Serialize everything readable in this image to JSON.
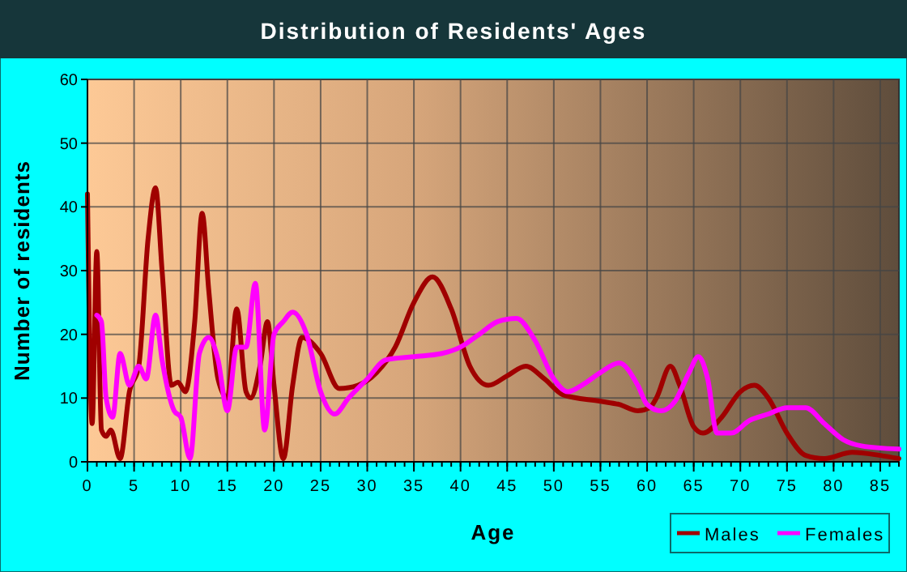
{
  "chart_data": {
    "type": "line",
    "title": "Distribution of Residents' Ages",
    "xlabel": "Age",
    "ylabel": "Number of residents",
    "xlim": [
      0,
      87
    ],
    "xticks": [
      0,
      5,
      10,
      15,
      20,
      25,
      30,
      35,
      40,
      45,
      50,
      55,
      60,
      65,
      70,
      75,
      80,
      85
    ],
    "ylim": [
      0,
      60
    ],
    "yticks": [
      0,
      10,
      20,
      30,
      40,
      50,
      60
    ],
    "grid": true,
    "legend": "bottom right",
    "marker": "none",
    "line_style": "solid",
    "series": [
      {
        "name": "Males",
        "color": "#a00000",
        "x": [
          0,
          0.5,
          1,
          1.5,
          2,
          2.5,
          3.5,
          4.5,
          5.5,
          6.5,
          7.3,
          8,
          9,
          9.7,
          10.5,
          11.5,
          12.3,
          13,
          14,
          15,
          16,
          17,
          17.5,
          18.5,
          19.3,
          20,
          21,
          22,
          23,
          25,
          27,
          29,
          31,
          33,
          35,
          37,
          39,
          41,
          43,
          45,
          47,
          49,
          51,
          55,
          57,
          59,
          60.3,
          61,
          62.5,
          63.5,
          65,
          66,
          68,
          70,
          71.5,
          73,
          75,
          77,
          79,
          82,
          85,
          87
        ],
        "values": [
          42,
          6,
          33,
          5,
          4,
          5,
          0.5,
          11,
          15,
          35,
          43,
          30,
          12,
          12.5,
          11,
          22,
          39,
          27,
          13,
          10,
          24,
          11,
          10,
          15,
          22,
          12,
          0.5,
          12,
          19.5,
          17,
          11.5,
          12,
          14,
          18,
          25,
          29,
          24,
          15,
          12,
          13.5,
          15,
          13,
          10.5,
          9.5,
          9,
          8,
          8.5,
          10,
          15,
          12,
          5.5,
          4.5,
          7,
          11,
          12,
          10,
          4.5,
          1,
          0.5,
          1.5,
          1,
          0.5
        ]
      },
      {
        "name": "Females",
        "color": "#ff00ff",
        "x": [
          1,
          1.5,
          2,
          2.7,
          3.5,
          4.5,
          5.5,
          6.3,
          7.3,
          8,
          9.3,
          10,
          11,
          12,
          13,
          14,
          15,
          16,
          17,
          18,
          19,
          20,
          21,
          22,
          23.5,
          25,
          26.5,
          28,
          30,
          32,
          35,
          38,
          40,
          42,
          44,
          46,
          48,
          50,
          51.5,
          53,
          55,
          57,
          59,
          60,
          61.5,
          63,
          64.5,
          65.5,
          66.5,
          67.5,
          69,
          71,
          73,
          75,
          77,
          79,
          81,
          83,
          87
        ],
        "values": [
          23,
          22,
          10,
          7,
          17,
          12,
          15,
          13,
          23,
          16,
          8,
          7,
          0.5,
          17,
          19.5,
          16,
          8,
          18,
          18,
          28,
          5,
          20,
          22,
          23.5,
          20,
          11,
          7.5,
          10,
          13,
          16,
          16.5,
          17,
          18,
          20,
          22,
          22.5,
          19,
          13,
          11,
          12,
          14,
          15.5,
          12,
          9,
          8,
          9.5,
          14,
          16.5,
          13,
          4.5,
          4.5,
          6.5,
          7.5,
          8.5,
          8.5,
          6,
          3.5,
          2.5,
          2
        ]
      }
    ]
  }
}
